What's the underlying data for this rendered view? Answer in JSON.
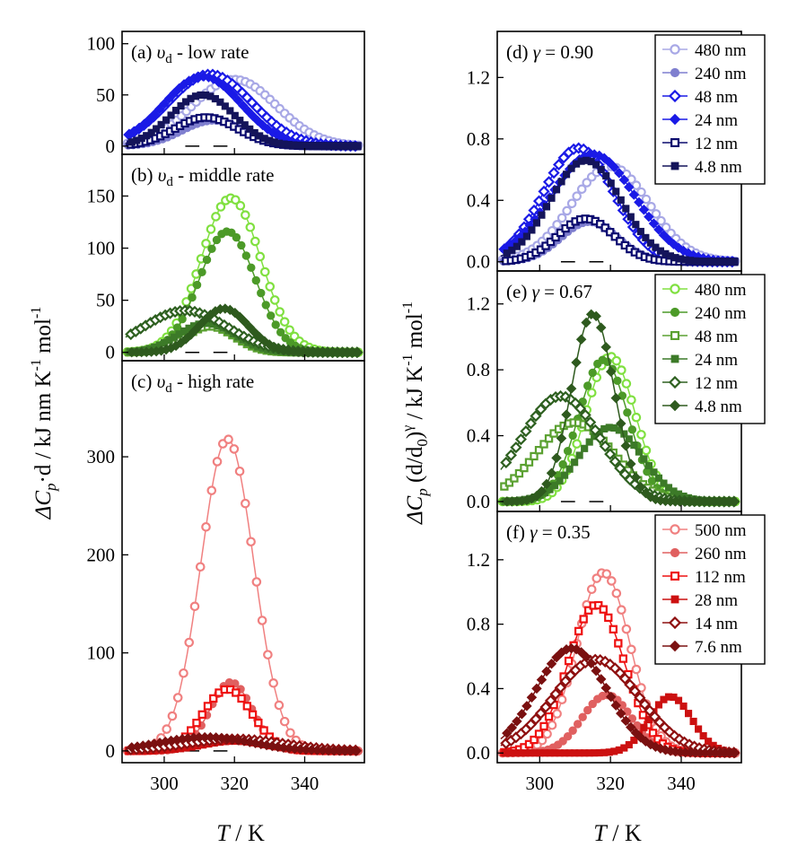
{
  "figure": {
    "left_ylabel": {
      "main": "ΔC",
      "sub": "p",
      "rest": "·d / kJ nm K",
      "sup1": "-1",
      "rest2": " mol",
      "sup2": "-1"
    },
    "right_ylabel": {
      "main": "ΔC",
      "sub": "p",
      "rest": " (d/d",
      "sub0": "0",
      "rest2": ")",
      "supg": "γ",
      "rest3": " / kJ  K",
      "sup1": "-1",
      "rest4": "  mol",
      "sup2": "-1"
    },
    "xlabel_left": {
      "var": "T",
      "unit": " / K"
    },
    "xlabel_right": {
      "var": "T",
      "unit": " / K"
    }
  },
  "chart_data": [
    {
      "id": "a",
      "type": "line",
      "xlim": [
        288,
        357
      ],
      "ylim": [
        -8,
        112
      ],
      "yticks": [
        0,
        50,
        100
      ],
      "ytick_labels": [
        "0",
        "50",
        "100"
      ],
      "xticks": [
        300,
        320,
        340
      ],
      "show_xtick_labels": false,
      "panel_label": {
        "prefix": "(a) ",
        "var": "υ",
        "sub": "d",
        "rest": " - low rate"
      },
      "series": [
        {
          "name": "480 nm",
          "color": "#a8a8e6",
          "marker": "circle-open",
          "center": 320,
          "width": 12,
          "amp": 65
        },
        {
          "name": "240 nm",
          "color": "#7f7fcf",
          "marker": "circle-filled",
          "center": 314,
          "width": 9,
          "amp": 25
        },
        {
          "name": "48 nm",
          "color": "#1a1ae6",
          "marker": "diamond-open",
          "center": 313,
          "width": 12,
          "amp": 70
        },
        {
          "name": "24 nm",
          "color": "#1a1ae6",
          "marker": "diamond-filled",
          "center": 311,
          "width": 11,
          "amp": 68
        },
        {
          "name": "12 nm",
          "color": "#0a0a6e",
          "marker": "square-open",
          "center": 312,
          "width": 9,
          "amp": 28
        },
        {
          "name": "4.8 nm",
          "color": "#14145a",
          "marker": "square-filled",
          "center": 311,
          "width": 9,
          "amp": 50
        }
      ]
    },
    {
      "id": "b",
      "type": "line",
      "xlim": [
        288,
        357
      ],
      "ylim": [
        -8,
        190
      ],
      "yticks": [
        0,
        50,
        100,
        150
      ],
      "ytick_labels": [
        "0",
        "50",
        "100",
        "150"
      ],
      "xticks": [
        300,
        320,
        340
      ],
      "show_xtick_labels": false,
      "panel_label": {
        "prefix": "(b) ",
        "var": "υ",
        "sub": "d",
        "rest": " - middle rate"
      },
      "series": [
        {
          "name": "480 nm",
          "color": "#80e040",
          "marker": "circle-open",
          "center": 319,
          "width": 8.5,
          "amp": 148
        },
        {
          "name": "240 nm",
          "color": "#4c9a28",
          "marker": "circle-filled",
          "center": 318,
          "width": 8,
          "amp": 116
        },
        {
          "name": "48 nm",
          "color": "#5aa030",
          "marker": "square-open",
          "center": 313,
          "width": 7,
          "amp": 25
        },
        {
          "name": "24 nm",
          "color": "#3c7a28",
          "marker": "square-filled",
          "center": 312,
          "width": 8,
          "amp": 28
        },
        {
          "name": "12 nm",
          "color": "#2e6020",
          "marker": "diamond-open",
          "center": 306,
          "width": 12,
          "amp": 40
        },
        {
          "name": "4.8 nm",
          "color": "#2e5a1e",
          "marker": "diamond-filled",
          "center": 317,
          "width": 7,
          "amp": 42
        }
      ]
    },
    {
      "id": "c",
      "type": "line",
      "xlim": [
        288,
        357
      ],
      "ylim": [
        -12,
        398
      ],
      "yticks": [
        0,
        100,
        200,
        300
      ],
      "ytick_labels": [
        "0",
        "100",
        "200",
        "300"
      ],
      "xticks": [
        300,
        320,
        340
      ],
      "show_xtick_labels": true,
      "xtick_labels": [
        "300",
        "320",
        "340"
      ],
      "panel_label": {
        "prefix": "(c) ",
        "var": "υ",
        "sub": "d",
        "rest": " - high rate"
      },
      "series": [
        {
          "name": "500 nm",
          "color": "#f08080",
          "marker": "circle-open",
          "center": 318,
          "width": 7.5,
          "amp": 318
        },
        {
          "name": "260 nm",
          "color": "#e06060",
          "marker": "circle-filled",
          "center": 319,
          "width": 6,
          "amp": 70
        },
        {
          "name": "112 nm",
          "color": "#ee1010",
          "marker": "square-open",
          "center": 318,
          "width": 7,
          "amp": 63
        },
        {
          "name": "28 nm",
          "color": "#cc1010",
          "marker": "square-filled",
          "center": 320,
          "width": 9,
          "amp": 10
        },
        {
          "name": "14 nm",
          "color": "#8e1010",
          "marker": "diamond-open",
          "center": 320,
          "width": 14,
          "amp": 12
        },
        {
          "name": "7.6 nm",
          "color": "#7a1010",
          "marker": "diamond-filled",
          "center": 312,
          "width": 13,
          "amp": 14
        }
      ]
    },
    {
      "id": "d",
      "type": "line",
      "xlim": [
        288,
        357
      ],
      "ylim": [
        -0.06,
        1.5
      ],
      "yticks": [
        0,
        0.4,
        0.8,
        1.2
      ],
      "ytick_labels": [
        "0.0",
        "0.4",
        "0.8",
        "1.2"
      ],
      "xticks": [
        300,
        320,
        340
      ],
      "show_xtick_labels": false,
      "panel_label": {
        "prefix": "(d) ",
        "var": "γ",
        "rest": " = 0.90"
      },
      "series": [
        {
          "name": "480 nm",
          "color": "#a8a8e6",
          "marker": "circle-open",
          "center": 320,
          "width": 11,
          "amp": 0.62
        },
        {
          "name": "240 nm",
          "color": "#7f7fcf",
          "marker": "circle-filled",
          "center": 314,
          "width": 8,
          "amp": 0.26
        },
        {
          "name": "48 nm",
          "color": "#1a1ae6",
          "marker": "diamond-open",
          "center": 311,
          "width": 10,
          "amp": 0.74
        },
        {
          "name": "24 nm",
          "color": "#1a1ae6",
          "marker": "diamond-filled",
          "center": 315,
          "width": 12,
          "amp": 0.7
        },
        {
          "name": "12 nm",
          "color": "#0a0a6e",
          "marker": "square-open",
          "center": 313,
          "width": 8,
          "amp": 0.28
        },
        {
          "name": "4.8 nm",
          "color": "#14145a",
          "marker": "square-filled",
          "center": 313,
          "width": 10,
          "amp": 0.66
        }
      ]
    },
    {
      "id": "e",
      "type": "line",
      "xlim": [
        288,
        357
      ],
      "ylim": [
        -0.06,
        1.4
      ],
      "yticks": [
        0,
        0.4,
        0.8,
        1.2
      ],
      "ytick_labels": [
        "0.0",
        "0.4",
        "0.8",
        "1.2"
      ],
      "xticks": [
        300,
        320,
        340
      ],
      "show_xtick_labels": false,
      "panel_label": {
        "prefix": "(e) ",
        "var": "γ",
        "rest": " = 0.67"
      },
      "series": [
        {
          "name": "480 nm",
          "color": "#80e040",
          "marker": "circle-open",
          "center": 320,
          "width": 7,
          "amp": 0.88
        },
        {
          "name": "240 nm",
          "color": "#4c9a28",
          "marker": "circle-filled",
          "center": 318,
          "width": 7,
          "amp": 0.86
        },
        {
          "name": "48 nm",
          "color": "#5aa030",
          "marker": "square-open",
          "center": 310,
          "width": 11,
          "amp": 0.48
        },
        {
          "name": "24 nm",
          "color": "#3c7a28",
          "marker": "square-filled",
          "center": 320,
          "width": 9,
          "amp": 0.45
        },
        {
          "name": "12 nm",
          "color": "#2e6020",
          "marker": "diamond-open",
          "center": 306,
          "width": 11,
          "amp": 0.64
        },
        {
          "name": "4.8 nm",
          "color": "#2e5a1e",
          "marker": "diamond-filled",
          "center": 315,
          "width": 6,
          "amp": 1.14
        }
      ]
    },
    {
      "id": "f",
      "type": "line",
      "xlim": [
        288,
        357
      ],
      "ylim": [
        -0.06,
        1.5
      ],
      "yticks": [
        0,
        0.4,
        0.8,
        1.2
      ],
      "ytick_labels": [
        "0.0",
        "0.4",
        "0.8",
        "1.2"
      ],
      "xticks": [
        300,
        320,
        340
      ],
      "show_xtick_labels": true,
      "xtick_labels": [
        "300",
        "320",
        "340"
      ],
      "panel_label": {
        "prefix": "(f) ",
        "var": "γ",
        "rest": " = 0.35"
      },
      "series": [
        {
          "name": "500 nm",
          "color": "#f08080",
          "marker": "circle-open",
          "center": 318,
          "width": 7.5,
          "amp": 1.12
        },
        {
          "name": "260 nm",
          "color": "#e06060",
          "marker": "circle-filled",
          "center": 319,
          "width": 7,
          "amp": 0.36
        },
        {
          "name": "112 nm",
          "color": "#ee1010",
          "marker": "square-open",
          "center": 316,
          "width": 8,
          "amp": 0.92
        },
        {
          "name": "28 nm",
          "color": "#cc1010",
          "marker": "square-filled",
          "center": 337,
          "width": 6,
          "amp": 0.35
        },
        {
          "name": "14 nm",
          "color": "#8e1010",
          "marker": "diamond-open",
          "center": 316,
          "width": 12,
          "amp": 0.58
        },
        {
          "name": "7.6 nm",
          "color": "#7a1010",
          "marker": "diamond-filled",
          "center": 309,
          "width": 10,
          "amp": 0.65
        }
      ]
    }
  ]
}
